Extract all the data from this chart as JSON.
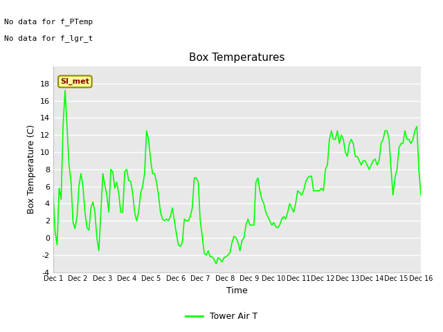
{
  "title": "Box Temperatures",
  "xlabel": "Time",
  "ylabel": "Box Temperature (C)",
  "ylim": [
    -4,
    20
  ],
  "yticks": [
    -4,
    -2,
    0,
    2,
    4,
    6,
    8,
    10,
    12,
    14,
    16,
    18
  ],
  "xlim": [
    0,
    15
  ],
  "xtick_labels": [
    "Dec 1",
    "Dec 2",
    "Dec 3",
    "Dec 4",
    "Dec 5",
    "Dec 6",
    "Dec 7",
    "Dec 8",
    "Dec 9",
    "Dec 10",
    "Dec 11",
    "Dec 12",
    "Dec 13",
    "Dec 14",
    "Dec 15",
    "Dec 16"
  ],
  "line_color": "#00FF00",
  "line_width": 1.2,
  "fig_bg_color": "#FFFFFF",
  "plot_bg_color": "#E8E8E8",
  "no_data_text1": "No data for f_PTemp",
  "no_data_text2": "No data for f_lgr_t",
  "legend_label": "Tower Air T",
  "annotation_text": "SI_met",
  "y_values": [
    5.0,
    0.7,
    -0.8,
    5.8,
    4.5,
    13.2,
    17.2,
    12.8,
    8.5,
    6.5,
    1.8,
    1.1,
    2.5,
    6.1,
    7.5,
    6.0,
    3.0,
    1.2,
    0.9,
    3.5,
    4.2,
    3.0,
    0.0,
    -1.5,
    3.0,
    7.5,
    6.2,
    5.0,
    3.0,
    8.0,
    7.7,
    5.8,
    6.5,
    5.2,
    3.0,
    3.0,
    7.7,
    8.0,
    6.7,
    6.6,
    5.2,
    3.0,
    2.0,
    3.0,
    5.2,
    6.0,
    7.5,
    12.5,
    11.5,
    9.2,
    7.5,
    7.5,
    6.5,
    5.0,
    3.0,
    2.2,
    2.0,
    2.2,
    2.0,
    2.5,
    3.5,
    2.0,
    0.5,
    -0.8,
    -1.0,
    -0.5,
    2.2,
    2.0,
    2.0,
    2.5,
    3.5,
    7.0,
    7.0,
    6.5,
    2.0,
    0.2,
    -1.8,
    -2.0,
    -1.5,
    -2.2,
    -2.2,
    -2.5,
    -3.0,
    -2.3,
    -2.5,
    -2.8,
    -2.3,
    -2.2,
    -2.0,
    -1.7,
    -0.5,
    0.2,
    0.0,
    -0.5,
    -1.5,
    -0.3,
    0.0,
    1.5,
    2.2,
    1.5,
    1.5,
    1.5,
    6.5,
    7.0,
    5.5,
    4.5,
    4.0,
    3.0,
    2.5,
    2.0,
    1.5,
    1.8,
    1.3,
    1.2,
    1.5,
    2.2,
    2.5,
    2.2,
    3.0,
    4.0,
    3.5,
    3.0,
    4.0,
    5.5,
    5.3,
    5.0,
    5.5,
    6.5,
    7.0,
    7.2,
    7.2,
    5.5,
    5.5,
    5.5,
    5.5,
    5.8,
    5.5,
    8.0,
    8.5,
    11.5,
    12.5,
    11.5,
    11.5,
    12.5,
    11.0,
    12.0,
    11.5,
    10.0,
    9.5,
    11.0,
    11.5,
    11.0,
    9.5,
    9.5,
    9.0,
    8.5,
    9.0,
    9.0,
    8.5,
    8.0,
    8.5,
    9.0,
    9.2,
    8.5,
    9.0,
    11.0,
    11.5,
    12.5,
    12.5,
    11.5,
    8.0,
    5.0,
    7.0,
    8.0,
    10.5,
    11.0,
    11.0,
    12.5,
    11.5,
    11.5,
    11.0,
    11.5,
    12.5,
    13.0,
    8.0,
    5.0
  ]
}
